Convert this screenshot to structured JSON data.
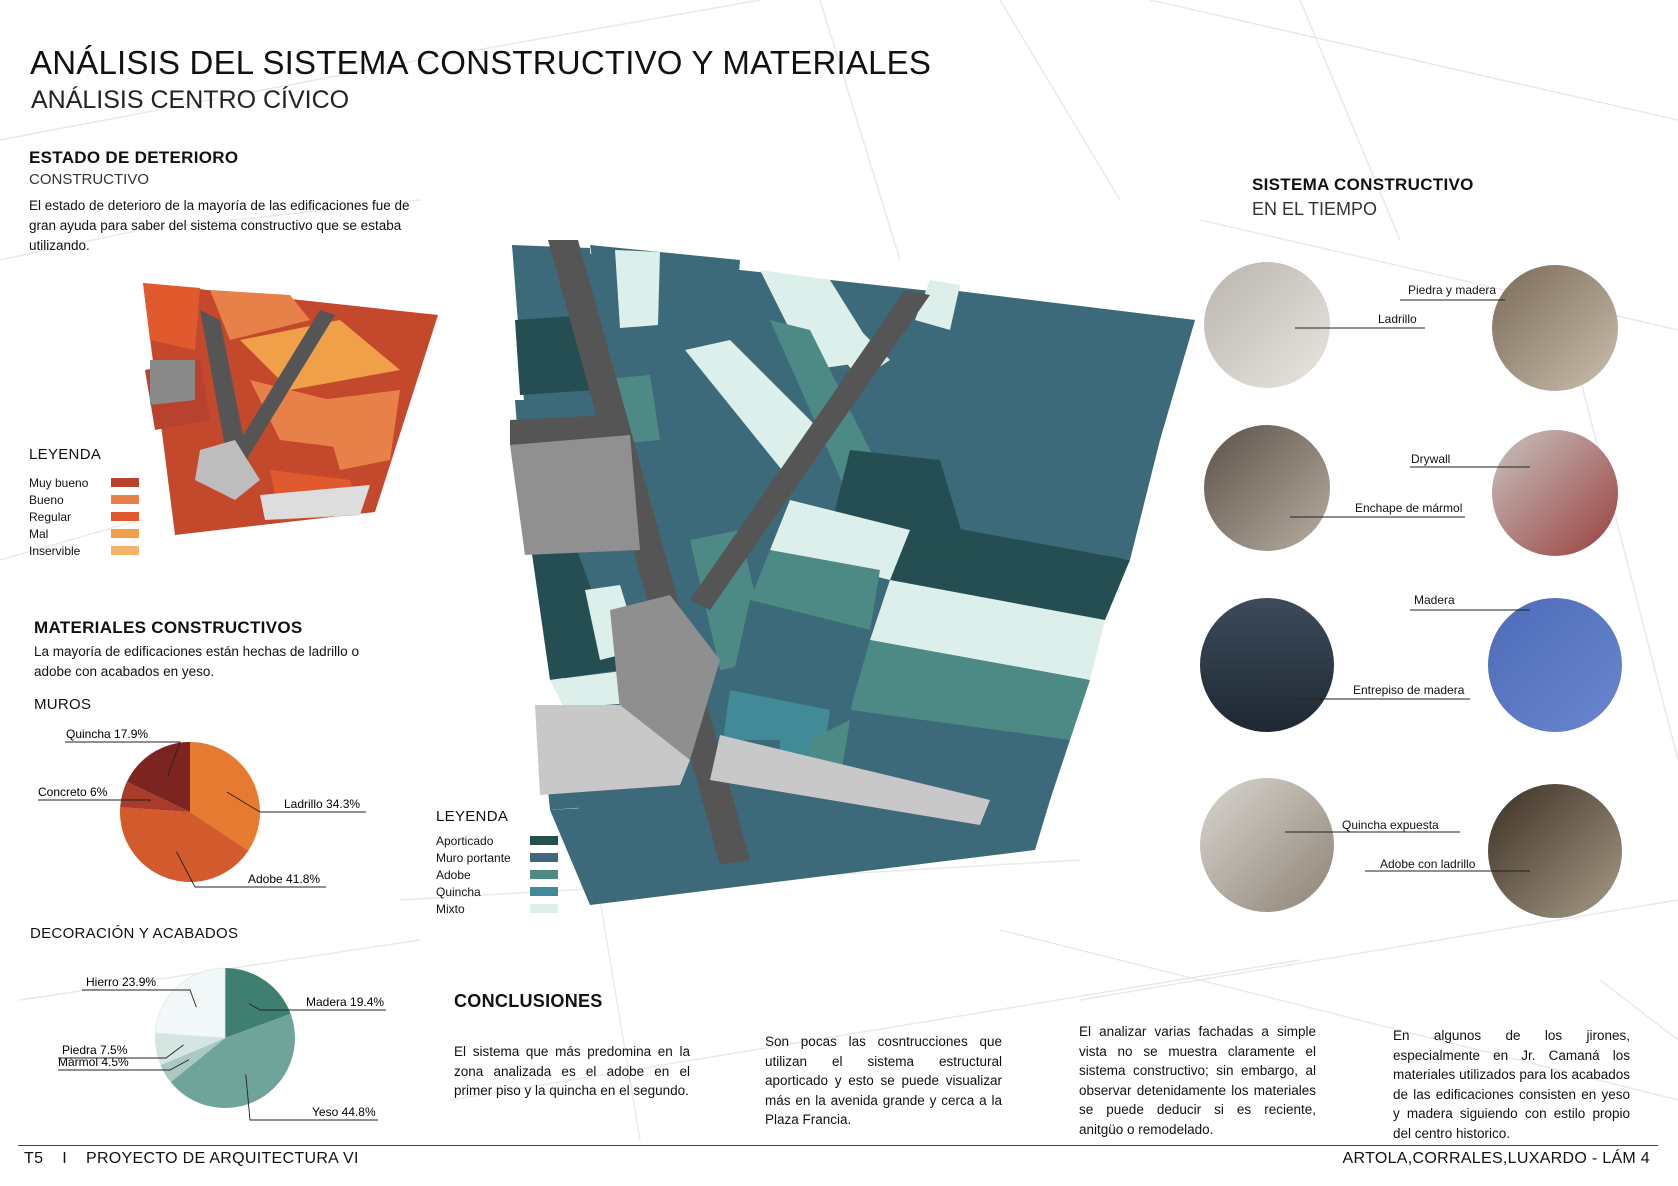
{
  "title": "ANÁLISIS DEL SISTEMA CONSTRUCTIVO Y MATERIALES",
  "subtitle": "ANÁLISIS CENTRO CÍVICO",
  "deterioro": {
    "heading": "ESTADO DE DETERIORO",
    "subheading": "CONSTRUCTIVO",
    "text": "El estado de deterioro de la mayoría de las edificaciones fue de gran ayuda  para saber del sistema constructivo que se estaba utilizando.",
    "legend_title": "LEYENDA",
    "legend": [
      {
        "label": "Muy bueno",
        "color": "#b8422e"
      },
      {
        "label": "Bueno",
        "color": "#e8804a"
      },
      {
        "label": "Regular",
        "color": "#e15a2e"
      },
      {
        "label": "Mal",
        "color": "#f0a048"
      },
      {
        "label": "Inservible",
        "color": "#f2b468"
      }
    ]
  },
  "materiales": {
    "heading": "MATERIALES CONSTRUCTIVOS",
    "text": "La mayoría de edificaciones están hechas de ladrillo o adobe con acabados en yeso.",
    "muros_title": "MUROS",
    "decoracion_title": "DECORACIÓN Y ACABADOS"
  },
  "chart_data": [
    {
      "type": "pie",
      "series": [
        {
          "label": "Ladrillo 34.3%",
          "value": 34.3,
          "color": "#e57a30"
        },
        {
          "label": "Adobe 41.8%",
          "value": 41.8,
          "color": "#d35a2c"
        },
        {
          "label": "Concreto 6%",
          "value": 6,
          "color": "#a83b2a"
        },
        {
          "label": "Quincha 17.9%",
          "value": 17.9,
          "color": "#7b2420"
        }
      ]
    },
    {
      "type": "pie",
      "series": [
        {
          "label": "Madera 19.4%",
          "value": 19.4,
          "color": "#3e7f72"
        },
        {
          "label": "Yeso 44.8%",
          "value": 44.8,
          "color": "#6fa49a"
        },
        {
          "label": "Mármol 4.5%",
          "value": 4.5,
          "color": "#a9c9c2"
        },
        {
          "label": "Piedra 7.5%",
          "value": 7.5,
          "color": "#d5e6e2"
        },
        {
          "label": "Hierro 23.9%",
          "value": 23.9,
          "color": "#f2f7f8"
        }
      ]
    }
  ],
  "main_legend": {
    "title": "LEYENDA",
    "items": [
      {
        "label": "Aporticado",
        "color": "#244e51"
      },
      {
        "label": "Muro portante",
        "color": "#3d6a7a"
      },
      {
        "label": "Adobe",
        "color": "#4d8a86"
      },
      {
        "label": "Quincha",
        "color": "#418a98"
      },
      {
        "label": "Mixto",
        "color": "#dcefea"
      }
    ]
  },
  "sistema": {
    "heading": "SISTEMA CONSTRUCTIVO",
    "subheading": "EN EL TIEMPO",
    "tags": [
      "Piedra y madera",
      "Ladrillo",
      "Drywall",
      "Enchape de mármol",
      "Madera",
      "Entrepiso de madera",
      "Quincha expuesta",
      "Adobe con ladrillo"
    ]
  },
  "conclusiones": {
    "heading": "CONCLUSIONES",
    "p1": "El sistema que más predomina en la zona analizada es el adobe en el primer piso y la quincha en el segundo.",
    "p2": "Son pocas las cosntrucciones que utilizan el sistema estructural aporticado y esto se puede visualizar más en la avenida grande y cerca a la Plaza Francia.",
    "p3": "El analizar varias fachadas a simple vista no se muestra claramente el sistema constructivo; sin embargo, al observar detenidamente los materiales se puede deducir si es reciente, anitgüo o remodelado.",
    "p4": "En algunos de los jirones, especialmente en Jr. Camaná los materiales utilizados para los acabados de las edificaciones consisten en yeso y madera siguiendo con estilo propio del centro historico."
  },
  "footer": {
    "left": "T5    I    PROYECTO DE ARQUITECTURA VI",
    "right": "ARTOLA,CORRALES,LUXARDO - LÁM  4"
  }
}
